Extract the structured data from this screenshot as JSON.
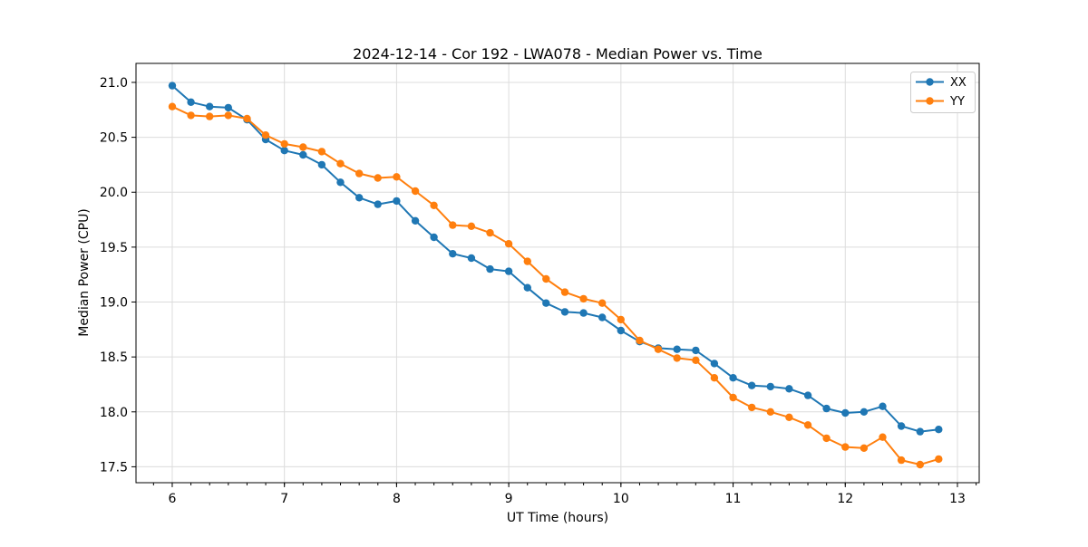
{
  "chart_data": {
    "type": "line",
    "title": "2024-12-14 - Cor 192 - LWA078 - Median Power vs. Time",
    "xlabel": "UT Time (hours)",
    "ylabel": "Median Power (CPU)",
    "xlim": [
      5.677,
      13.194
    ],
    "ylim": [
      17.355,
      21.173
    ],
    "x_ticks": [
      6,
      7,
      8,
      9,
      10,
      11,
      12,
      13
    ],
    "x_tick_labels": [
      "6",
      "7",
      "8",
      "9",
      "10",
      "11",
      "12",
      "13"
    ],
    "y_ticks": [
      17.5,
      18.0,
      18.5,
      19.0,
      19.5,
      20.0,
      20.5,
      21.0
    ],
    "y_tick_labels": [
      "17.5",
      "18.0",
      "18.5",
      "19.0",
      "19.5",
      "20.0",
      "20.5",
      "21.0"
    ],
    "x_minor_step": 0.166667,
    "grid": true,
    "legend_position": "upper right",
    "x": [
      6.0,
      6.167,
      6.333,
      6.5,
      6.667,
      6.833,
      7.0,
      7.167,
      7.333,
      7.5,
      7.667,
      7.833,
      8.0,
      8.167,
      8.333,
      8.5,
      8.667,
      8.833,
      9.0,
      9.167,
      9.333,
      9.5,
      9.667,
      9.833,
      10.0,
      10.167,
      10.333,
      10.5,
      10.667,
      10.833,
      11.0,
      11.167,
      11.333,
      11.5,
      11.667,
      11.833,
      12.0,
      12.167,
      12.333,
      12.5,
      12.667,
      12.833
    ],
    "series": [
      {
        "name": "XX",
        "color": "#1f77b4",
        "values": [
          20.97,
          20.82,
          20.78,
          20.77,
          20.66,
          20.48,
          20.38,
          20.34,
          20.25,
          20.09,
          19.95,
          19.89,
          19.92,
          19.74,
          19.59,
          19.44,
          19.4,
          19.3,
          19.28,
          19.13,
          18.99,
          18.91,
          18.9,
          18.86,
          18.74,
          18.64,
          18.58,
          18.57,
          18.56,
          18.44,
          18.31,
          18.24,
          18.23,
          18.21,
          18.15,
          18.03,
          17.99,
          18.0,
          18.05,
          17.87,
          17.82,
          17.84
        ]
      },
      {
        "name": "YY",
        "color": "#ff7f0e",
        "values": [
          20.78,
          20.7,
          20.69,
          20.7,
          20.67,
          20.52,
          20.44,
          20.41,
          20.37,
          20.26,
          20.17,
          20.13,
          20.14,
          20.01,
          19.88,
          19.7,
          19.69,
          19.63,
          19.53,
          19.37,
          19.21,
          19.09,
          19.03,
          18.99,
          18.84,
          18.65,
          18.57,
          18.49,
          18.47,
          18.31,
          18.13,
          18.04,
          18.0,
          17.95,
          17.88,
          17.76,
          17.68,
          17.67,
          17.77,
          17.56,
          17.52,
          17.57
        ]
      }
    ]
  }
}
